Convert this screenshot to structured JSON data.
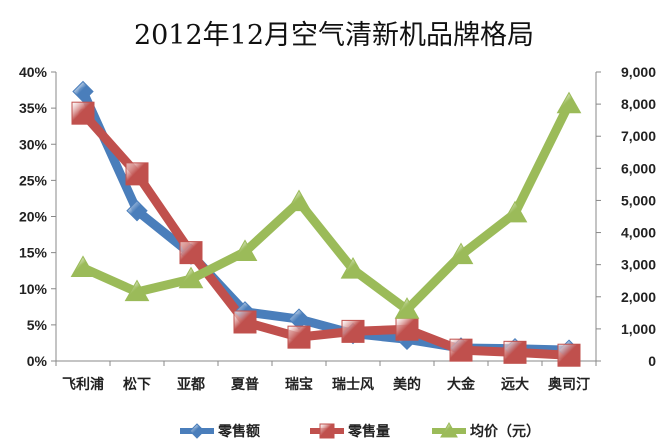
{
  "chart_data": {
    "type": "line",
    "title": "2012年12月空气清新机品牌格局",
    "categories": [
      "飞利浦",
      "松下",
      "亚都",
      "夏普",
      "瑞宝",
      "瑞士风",
      "美的",
      "大金",
      "远大",
      "奥司汀"
    ],
    "y_left": {
      "range": [
        0,
        0.4
      ],
      "ticks": [
        "0%",
        "5%",
        "10%",
        "15%",
        "20%",
        "25%",
        "30%",
        "35%",
        "40%"
      ]
    },
    "y_right": {
      "range": [
        0,
        9000
      ],
      "ticks": [
        "0",
        "1,000",
        "2,000",
        "3,000",
        "4,000",
        "5,000",
        "6,000",
        "7,000",
        "8,000",
        "9,000"
      ]
    },
    "grid": false,
    "legend_position": "bottom",
    "series": [
      {
        "name": "零售额",
        "axis": "left",
        "color": "#4a7ebb",
        "marker": "diamond",
        "values": [
          0.373,
          0.208,
          0.148,
          0.068,
          0.058,
          0.038,
          0.03,
          0.018,
          0.017,
          0.015
        ]
      },
      {
        "name": "零售量",
        "axis": "left",
        "color": "#c0504d",
        "marker": "square",
        "values": [
          0.343,
          0.259,
          0.15,
          0.054,
          0.033,
          0.041,
          0.044,
          0.015,
          0.012,
          0.008
        ]
      },
      {
        "name": "均价（元）",
        "axis": "right",
        "color": "#9bbb59",
        "marker": "triangle",
        "values": [
          2900,
          2150,
          2550,
          3400,
          4950,
          2850,
          1600,
          3300,
          4600,
          8000
        ]
      }
    ]
  }
}
